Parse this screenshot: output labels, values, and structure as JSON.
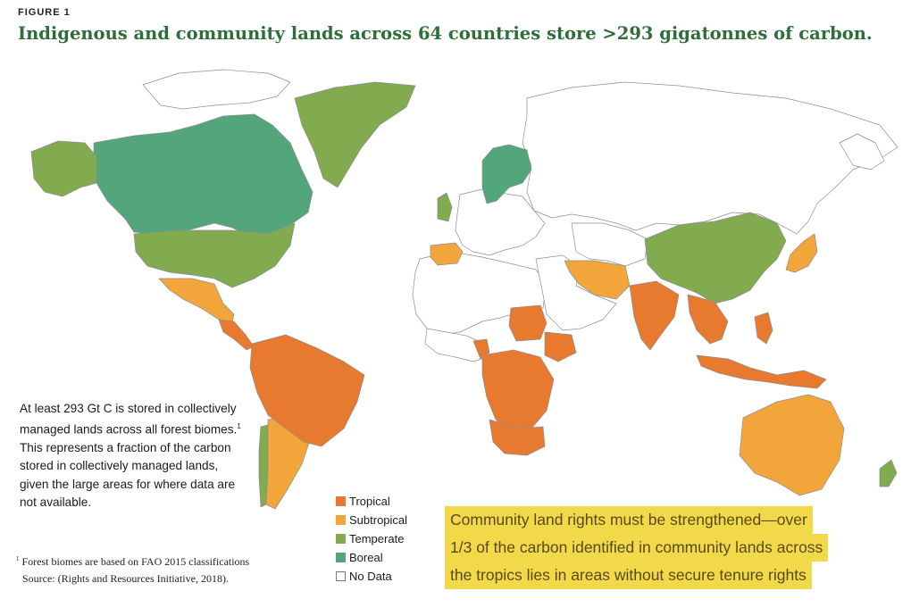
{
  "figure_label": "FIGURE 1",
  "title": "Indigenous and community lands across 64 countries store >293 gigatonnes of carbon.",
  "callout": {
    "text": "At least 293 Gt C is stored in collectively managed lands across all forest biomes.",
    "sup": "1",
    "text2": " This represents a fraction of the carbon stored in collectively managed lands, given the large areas for where data are not available."
  },
  "footnote": {
    "sup": "1",
    "line1": " Forest biomes are based on FAO 2015 classifications",
    "line2": "Source: (Rights and Resources Initiative, 2018)."
  },
  "legend": [
    {
      "label": "Tropical",
      "color": "#e87a30"
    },
    {
      "label": "Subtropical",
      "color": "#f2a53a"
    },
    {
      "label": "Temperate",
      "color": "#82ab4f"
    },
    {
      "label": "Boreal",
      "color": "#52a67a"
    },
    {
      "label": "No Data",
      "color": "#ffffff"
    }
  ],
  "highlight_lines": [
    "Community land rights must be strengthened—over",
    "1/3 of the carbon identified in community lands across",
    "the tropics lies in areas without secure tenure rights"
  ],
  "colors": {
    "tropical": "#e87a30",
    "subtropical": "#f2a53a",
    "temperate": "#82ab4f",
    "boreal": "#52a67a",
    "nodata": "#ffffff",
    "border": "#9a9a9a",
    "title": "#2e6e3a",
    "highlight": "#f1d94a"
  }
}
